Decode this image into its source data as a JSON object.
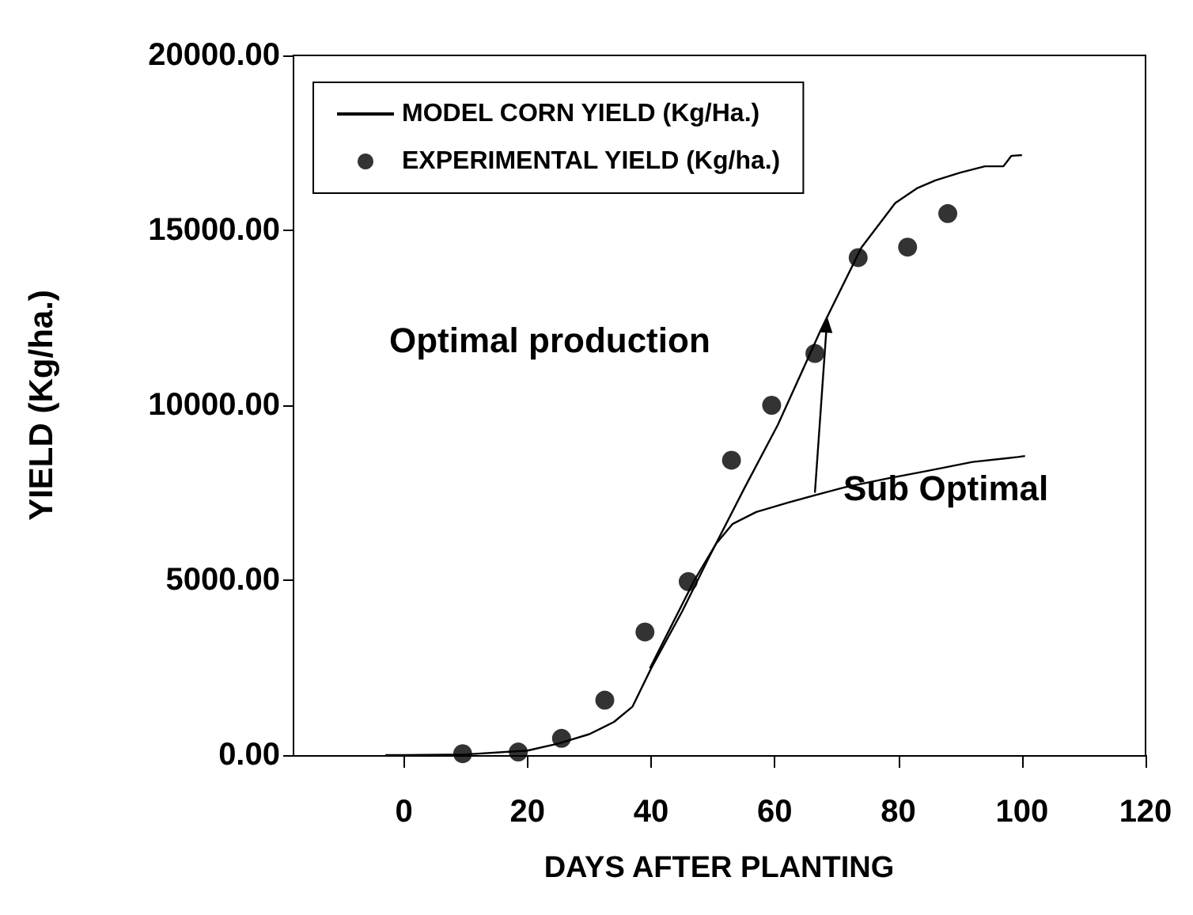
{
  "chart_data": {
    "type": "line",
    "xlabel": "DAYS AFTER PLANTING",
    "ylabel": "YIELD (Kg/ha.)",
    "xlim": [
      -18,
      120
    ],
    "xticks": [
      0,
      20,
      40,
      60,
      80,
      100,
      120
    ],
    "ylim": [
      0,
      20000
    ],
    "yticks": [
      {
        "value": 0,
        "label": "0.00"
      },
      {
        "value": 5000,
        "label": "5000.00"
      },
      {
        "value": 10000,
        "label": "10000.00"
      },
      {
        "value": 15000,
        "label": "15000.00"
      },
      {
        "value": 20000,
        "label": "20000.00"
      }
    ],
    "grid": false,
    "legend": "top left",
    "series": [
      {
        "name": "MODEL CORN YIELD (Kg/Ha.)",
        "color": "#000000",
        "marker": "none",
        "x": [
          -3,
          0,
          10,
          20,
          25,
          30,
          34,
          37,
          40,
          45,
          49.5,
          55,
          60.5,
          67.5,
          74,
          79.5,
          83,
          86,
          90,
          94,
          97,
          98.3,
          100
        ],
        "values": [
          0,
          0,
          20,
          130,
          330,
          600,
          950,
          1390,
          2480,
          4100,
          5700,
          7600,
          9440,
          12170,
          14500,
          15780,
          16200,
          16430,
          16650,
          16830,
          16830,
          17130,
          17150
        ]
      },
      {
        "color": "#000000",
        "marker": "none",
        "x": [
          39.8,
          43,
          47,
          50.5,
          53.2,
          57,
          62.2,
          67,
          71.2,
          78,
          84.9,
          92,
          99.3,
          100.5
        ],
        "values": [
          2480,
          3600,
          5000,
          6040,
          6610,
          6950,
          7220,
          7450,
          7650,
          7900,
          8130,
          8380,
          8520,
          8550
        ]
      },
      {
        "name": "EXPERIMENTAL YIELD (Kg/ha.)",
        "type": "scatter",
        "color": "#000000",
        "marker": "circle",
        "x": [
          9.5,
          18.5,
          25.5,
          32.5,
          39,
          46,
          53,
          59.5,
          66.5,
          73.5,
          81.5,
          88
        ],
        "values": [
          40,
          90,
          480,
          1570,
          3520,
          4960,
          8430,
          10000,
          11480,
          14220,
          14520,
          15480
        ]
      }
    ],
    "annotations": [
      "Optimal production",
      {
        "text": "Sub Optimal",
        "x": 66.5,
        "y": 7500
      }
    ]
  }
}
